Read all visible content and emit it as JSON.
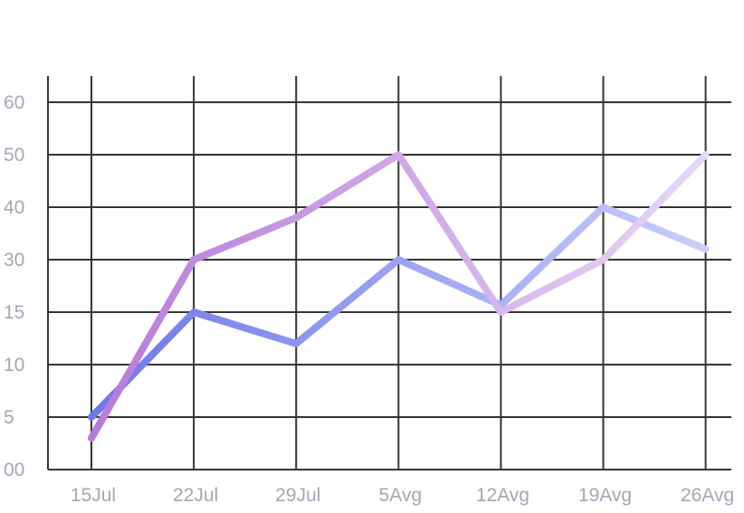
{
  "chart_data": {
    "type": "line",
    "categories": [
      "15Jul",
      "22Jul",
      "29Jul",
      "5Avg",
      "12Avg",
      "19Avg",
      "26Avg"
    ],
    "y_tick_labels": [
      "00",
      "5",
      "10",
      "15",
      "30",
      "40",
      "50",
      "60"
    ],
    "grid": true,
    "legend": "none",
    "title": "",
    "xlabel": "",
    "ylabel": "",
    "series": [
      {
        "values": [
          5,
          15,
          12,
          30,
          17,
          40,
          32
        ],
        "color_start": "#6f78e8",
        "color_end": "#c7cefb"
      },
      {
        "values": [
          3,
          30,
          38,
          50,
          15,
          30,
          50
        ],
        "color_start": "#b77ad8",
        "color_end": "#e8d6f8"
      }
    ]
  }
}
